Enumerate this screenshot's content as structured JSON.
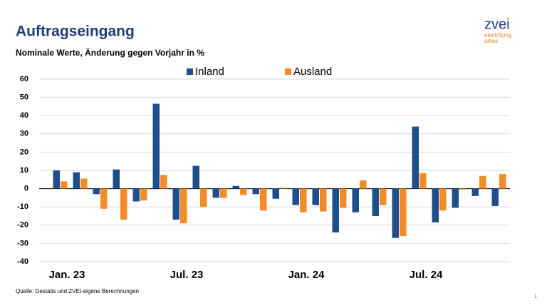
{
  "chart_data": {
    "type": "bar",
    "title": "Auftragseingang",
    "subtitle": "Nominale Werte, Änderung gegen Vorjahr in %",
    "categories": [
      "Jan. 23",
      null,
      null,
      null,
      null,
      null,
      "Jul. 23",
      null,
      null,
      null,
      null,
      null,
      "Jan. 24",
      null,
      null,
      null,
      null,
      null,
      "Jul. 24",
      null,
      null,
      null,
      null
    ],
    "series": [
      {
        "name": "Inland",
        "color": "#1f4e8c",
        "values": [
          10,
          9,
          -3,
          10.5,
          -7,
          46.5,
          -17,
          12.5,
          -5,
          1.5,
          -3,
          -5.5,
          -9,
          -9,
          -24,
          -13,
          -15,
          -27,
          34,
          -18.5,
          -10.5,
          -4,
          -9.5
        ]
      },
      {
        "name": "Ausland",
        "color": "#f28c28",
        "values": [
          4,
          5.5,
          -11,
          -17,
          -6.5,
          7.5,
          -19,
          -10,
          -5,
          -3.5,
          -12,
          0.5,
          -13,
          -12.5,
          -10.5,
          4.5,
          -9,
          -26,
          8.5,
          -12,
          -0.5,
          7,
          8
        ]
      }
    ],
    "ylim": [
      -40,
      60
    ],
    "yticks": [
      -40,
      -30,
      -20,
      -10,
      0,
      10,
      20,
      30,
      40,
      50,
      60
    ],
    "grid": true,
    "legend": "top"
  },
  "logo": {
    "name": "zvei",
    "tagline1": "electrifying",
    "tagline2": "ideas"
  },
  "source": "Quelle: Destatis und ZVEI-eigene Berechnungen",
  "page_number": "1"
}
